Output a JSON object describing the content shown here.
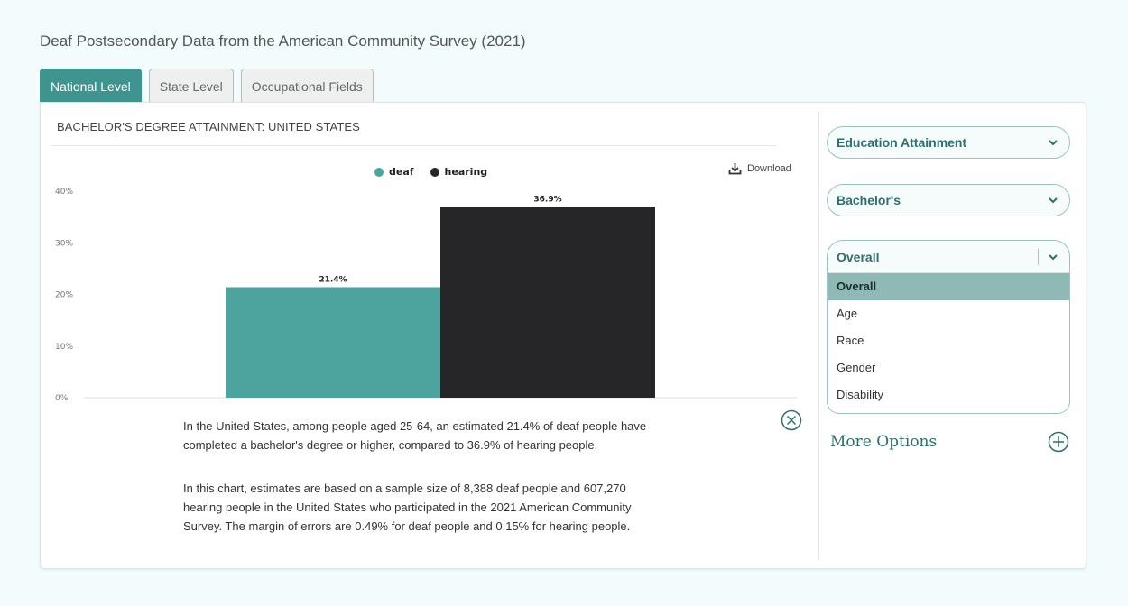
{
  "page": {
    "title": "Deaf Postsecondary Data from the American Community Survey (2021)"
  },
  "tabs": [
    {
      "label": "National Level",
      "active": true
    },
    {
      "label": "State Level",
      "active": false
    },
    {
      "label": "Occupational Fields",
      "active": false
    }
  ],
  "chart_header": {
    "title": "BACHELOR'S DEGREE ATTAINMENT: UNITED STATES",
    "download_label": "Download"
  },
  "chart_data": {
    "type": "bar",
    "categories": [
      "deaf",
      "hearing"
    ],
    "values": [
      21.4,
      36.9
    ],
    "value_labels": [
      "21.4%",
      "36.9%"
    ],
    "colors": [
      "#4da39d",
      "#262629"
    ],
    "legend": [
      "deaf",
      "hearing"
    ],
    "legend_position": "top-center",
    "ylim": [
      0,
      40
    ],
    "yticks": [
      0,
      10,
      20,
      30,
      40
    ],
    "ytick_labels": [
      "0%",
      "10%",
      "20%",
      "30%",
      "40%"
    ],
    "grid": false
  },
  "description": {
    "p1": "In the United States, among people aged 25-64, an estimated 21.4% of deaf people have completed a bachelor's degree or higher, compared to 36.9% of hearing people.",
    "p2": "In this chart, estimates are based on a sample size of 8,388 deaf people and 607,270 hearing people in the United States who participated in the 2021 American Community Survey. The margin of errors are 0.49% for deaf people and 0.15% for hearing people."
  },
  "sidebar": {
    "select_attainment": "Education Attainment",
    "select_degree": "Bachelor's",
    "select_group": "Overall",
    "group_options": [
      "Overall",
      "Age",
      "Race",
      "Gender",
      "Disability"
    ],
    "selected_option": "Overall",
    "more_options": "More Options"
  },
  "icons": {
    "download": "download-icon",
    "close": "close-circle-icon",
    "chevron": "chevron-down-icon",
    "plus": "plus-circle-icon"
  },
  "colors": {
    "accent": "#3f9490",
    "deaf": "#4da39d",
    "hearing": "#262629"
  }
}
